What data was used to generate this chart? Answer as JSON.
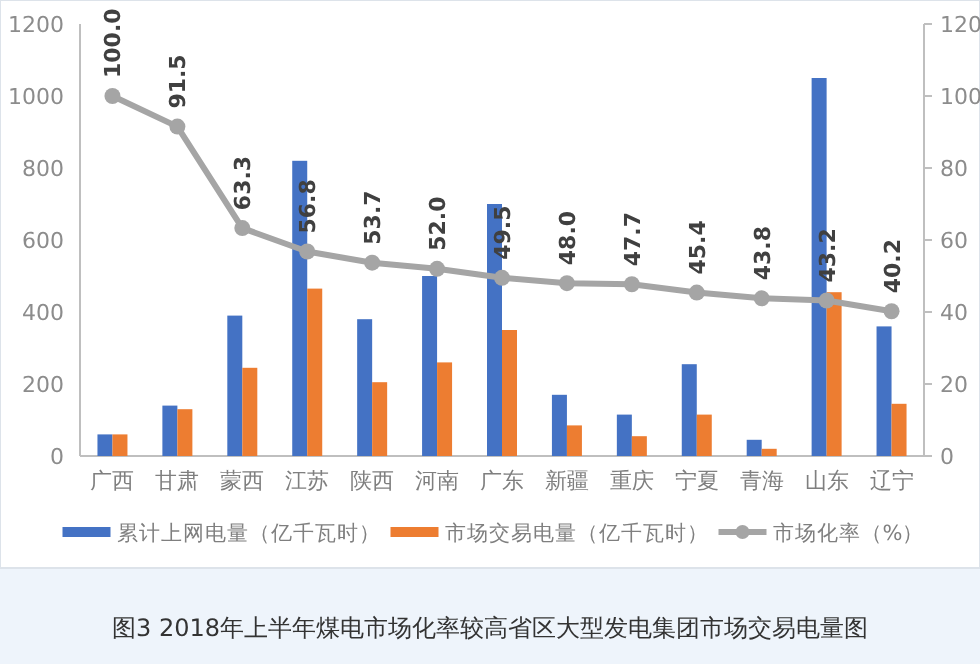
{
  "chart_data": {
    "type": "bar",
    "title": "图3 2018年上半年煤电市场化率较高省区大型发电集团市场交易电量图",
    "categories": [
      "广西",
      "甘肃",
      "蒙西",
      "江苏",
      "陕西",
      "河南",
      "广东",
      "新疆",
      "重庆",
      "宁夏",
      "青海",
      "山东",
      "辽宁"
    ],
    "series": [
      {
        "name": "累计上网电量（亿千瓦时）",
        "color": "#4472c4",
        "values": [
          60,
          140,
          390,
          820,
          380,
          500,
          700,
          170,
          115,
          255,
          45,
          1050,
          360
        ]
      },
      {
        "name": "市场交易电量（亿千瓦时）",
        "color": "#ed7d31",
        "values": [
          60,
          130,
          245,
          465,
          205,
          260,
          350,
          85,
          55,
          115,
          20,
          455,
          145
        ]
      },
      {
        "name": "市场化率（%）",
        "type": "line",
        "axis": "y2",
        "color": "#a5a5a5",
        "marker": "circle",
        "values": [
          100.0,
          91.5,
          63.3,
          56.8,
          53.7,
          52.0,
          49.5,
          48.0,
          47.7,
          45.4,
          43.8,
          43.2,
          40.2
        ],
        "value_labels": [
          "100.0",
          "91.5",
          "63.3",
          "56.8",
          "53.7",
          "52.0",
          "49.5",
          "48.0",
          "47.7",
          "45.4",
          "43.8",
          "43.2",
          "40.2"
        ]
      }
    ],
    "ylim": [
      0,
      1200
    ],
    "yticks": [
      0,
      200,
      400,
      600,
      800,
      1000,
      1200
    ],
    "y2lim": [
      0,
      120
    ],
    "y2ticks": [
      0,
      20,
      40,
      60,
      80,
      100,
      120
    ],
    "legend": "bottom",
    "grid": false
  }
}
